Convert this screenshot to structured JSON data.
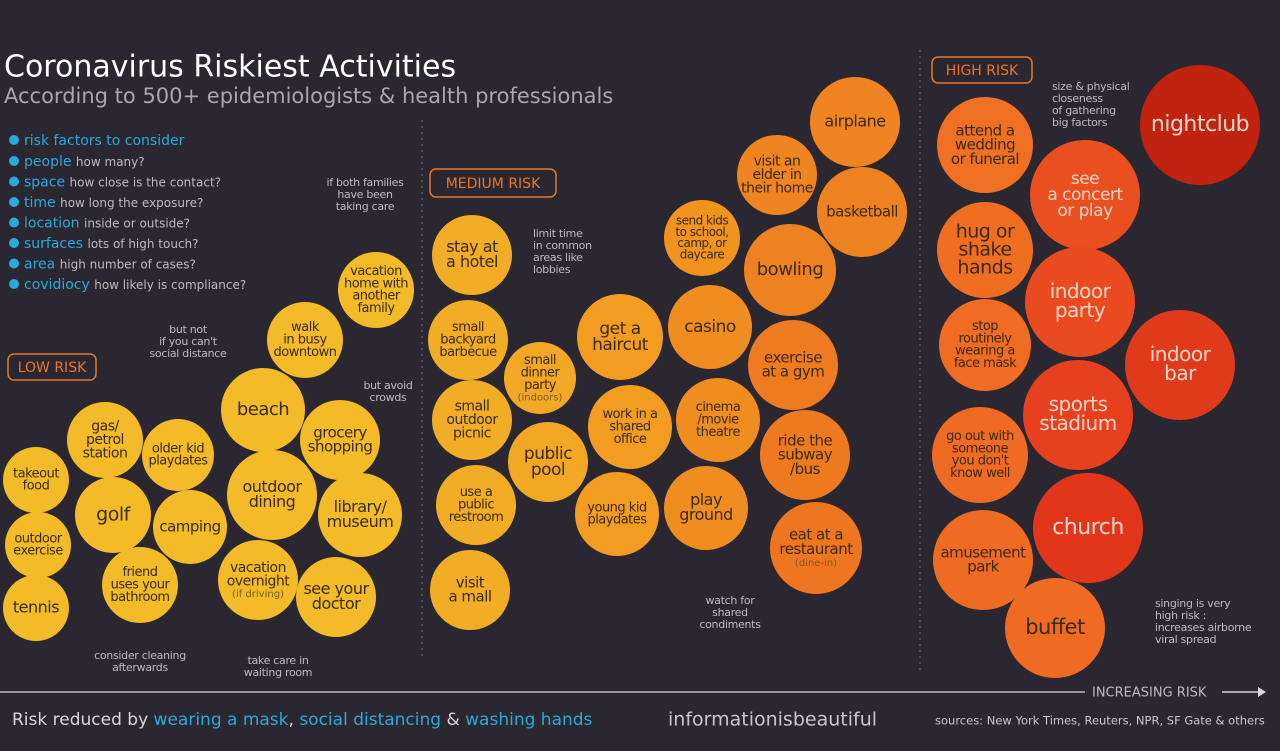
{
  "header": {
    "title": "Coronavirus Riskiest Activities",
    "subtitle": "According to 500+ epidemiologists & health professionals"
  },
  "risk_factors": {
    "heading": "risk factors to consider",
    "items": [
      {
        "name": "people",
        "detail": "how many?"
      },
      {
        "name": "space",
        "detail": "how close is the contact?"
      },
      {
        "name": "time",
        "detail": "how long the exposure?"
      },
      {
        "name": "location",
        "detail": "inside or outside?"
      },
      {
        "name": "surfaces",
        "detail": "lots of high touch?"
      },
      {
        "name": "area",
        "detail": "high number of cases?"
      },
      {
        "name": "covidiocy",
        "detail": "how likely is compliance?"
      }
    ]
  },
  "zones": [
    {
      "label": "LOW RISK"
    },
    {
      "label": "MEDIUM RISK"
    },
    {
      "label": "HIGH RISK"
    }
  ],
  "bubbles": [
    {
      "lines": [
        "takeout",
        "food"
      ]
    },
    {
      "lines": [
        "outdoor",
        "exercise"
      ]
    },
    {
      "lines": [
        "tennis"
      ]
    },
    {
      "lines": [
        "gas/",
        "petrol",
        "station"
      ]
    },
    {
      "lines": [
        "golf"
      ]
    },
    {
      "lines": [
        "older kid",
        "playdates"
      ]
    },
    {
      "lines": [
        "camping"
      ]
    },
    {
      "lines": [
        "friend",
        "uses your",
        "bathroom"
      ]
    },
    {
      "lines": [
        "beach"
      ]
    },
    {
      "lines": [
        "grocery",
        "shopping"
      ]
    },
    {
      "lines": [
        "outdoor",
        "dining"
      ]
    },
    {
      "lines": [
        "library/",
        "museum"
      ]
    },
    {
      "lines": [
        "vacation",
        "overnight"
      ],
      "note": "(if driving)"
    },
    {
      "lines": [
        "see your",
        "doctor"
      ]
    },
    {
      "lines": [
        "walk",
        "in busy",
        "downtown"
      ]
    },
    {
      "lines": [
        "vacation",
        "home with",
        "another",
        "family"
      ]
    },
    {
      "lines": [
        "stay at",
        "a hotel"
      ]
    },
    {
      "lines": [
        "small",
        "backyard",
        "barbecue"
      ]
    },
    {
      "lines": [
        "small",
        "outdoor",
        "picnic"
      ]
    },
    {
      "lines": [
        "use a",
        "public",
        "restroom"
      ]
    },
    {
      "lines": [
        "visit",
        "a mall"
      ]
    },
    {
      "lines": [
        "small",
        "dinner",
        "party"
      ],
      "note": "(indoors)"
    },
    {
      "lines": [
        "public",
        "pool"
      ]
    },
    {
      "lines": [
        "get a",
        "haircut"
      ]
    },
    {
      "lines": [
        "work in a",
        "shared",
        "office"
      ]
    },
    {
      "lines": [
        "young kid",
        "playdates"
      ]
    },
    {
      "lines": [
        "casino"
      ]
    },
    {
      "lines": [
        "cinema",
        "/movie",
        "theatre"
      ]
    },
    {
      "lines": [
        "play",
        "ground"
      ]
    },
    {
      "lines": [
        "send kids",
        "to school,",
        "camp, or",
        "daycare"
      ]
    },
    {
      "lines": [
        "visit an",
        "elder in",
        "their home"
      ]
    },
    {
      "lines": [
        "bowling"
      ]
    },
    {
      "lines": [
        "exercise",
        "at a gym"
      ]
    },
    {
      "lines": [
        "ride the",
        "subway",
        "/bus"
      ]
    },
    {
      "lines": [
        "eat at a",
        "restaurant"
      ],
      "note": "(dine-in)"
    },
    {
      "lines": [
        "airplane"
      ]
    },
    {
      "lines": [
        "basketball"
      ]
    },
    {
      "lines": [
        "attend a",
        "wedding",
        "or funeral"
      ]
    },
    {
      "lines": [
        "hug or",
        "shake",
        "hands"
      ]
    },
    {
      "lines": [
        "stop",
        "routinely",
        "wearing a",
        "face mask"
      ]
    },
    {
      "lines": [
        "go out with",
        "someone",
        "you don't",
        "know well"
      ]
    },
    {
      "lines": [
        "amusement",
        "park"
      ]
    },
    {
      "lines": [
        "see",
        "a concert",
        "or play"
      ]
    },
    {
      "lines": [
        "indoor",
        "party"
      ]
    },
    {
      "lines": [
        "sports",
        "stadium"
      ]
    },
    {
      "lines": [
        "church"
      ]
    },
    {
      "lines": [
        "buffet"
      ]
    },
    {
      "lines": [
        "indoor",
        "bar"
      ]
    },
    {
      "lines": [
        "nightclub"
      ]
    }
  ],
  "annotations": [
    {
      "lines": [
        "if both families",
        "have been",
        "taking care"
      ]
    },
    {
      "lines": [
        "but not",
        "if you can't",
        "social distance"
      ]
    },
    {
      "lines": [
        "but avoid",
        "crowds"
      ]
    },
    {
      "lines": [
        "consider cleaning",
        "afterwards"
      ]
    },
    {
      "lines": [
        "take care in",
        "waiting room"
      ]
    },
    {
      "lines": [
        "limit time",
        "in common",
        "areas like",
        "lobbies"
      ]
    },
    {
      "lines": [
        "watch for",
        "shared",
        "condiments"
      ]
    },
    {
      "lines": [
        "size & physical",
        "closeness",
        "of gathering",
        "big factors"
      ]
    },
    {
      "lines": [
        "singing is very",
        "high risk :",
        "increases airborne",
        "viral spread"
      ]
    }
  ],
  "axis_label": "INCREASING RISK",
  "footer": {
    "prefix": "Risk reduced by",
    "measures": [
      "wearing a mask",
      "social distancing",
      "washing hands"
    ],
    "separators": [
      ",",
      "&"
    ],
    "brand": "informationisbeautiful",
    "sources": "sources: New York Times, Reuters, NPR, SF Gate & others"
  }
}
